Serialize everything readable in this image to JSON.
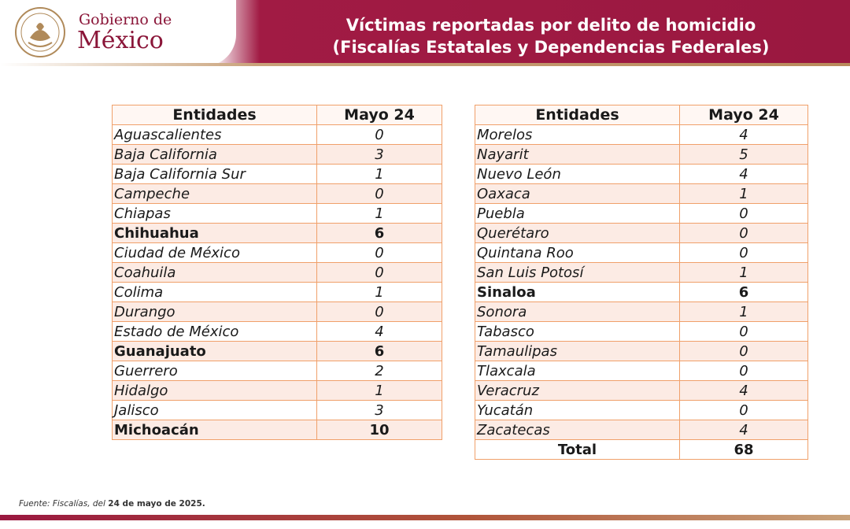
{
  "header": {
    "logo_line1": "Gobierno de",
    "logo_line2": "México",
    "title_line1": "Víctimas reportadas por delito de homicidio",
    "title_line2": "(Fiscalías Estatales y Dependencias Federales)"
  },
  "table_left": {
    "col_entity": "Entidades",
    "col_value": "Mayo 24",
    "rows": [
      {
        "name": "Aguascalientes",
        "value": "0",
        "bold": false
      },
      {
        "name": "Baja California",
        "value": "3",
        "bold": false
      },
      {
        "name": "Baja California Sur",
        "value": "1",
        "bold": false
      },
      {
        "name": "Campeche",
        "value": "0",
        "bold": false
      },
      {
        "name": "Chiapas",
        "value": "1",
        "bold": false
      },
      {
        "name": "Chihuahua",
        "value": "6",
        "bold": true
      },
      {
        "name": "Ciudad de México",
        "value": "0",
        "bold": false
      },
      {
        "name": "Coahuila",
        "value": "0",
        "bold": false
      },
      {
        "name": "Colima",
        "value": "1",
        "bold": false
      },
      {
        "name": "Durango",
        "value": "0",
        "bold": false
      },
      {
        "name": "Estado de México",
        "value": "4",
        "bold": false
      },
      {
        "name": "Guanajuato",
        "value": "6",
        "bold": true
      },
      {
        "name": "Guerrero",
        "value": "2",
        "bold": false
      },
      {
        "name": "Hidalgo",
        "value": "1",
        "bold": false
      },
      {
        "name": "Jalisco",
        "value": "3",
        "bold": false
      },
      {
        "name": "Michoacán",
        "value": "10",
        "bold": true
      }
    ]
  },
  "table_right": {
    "col_entity": "Entidades",
    "col_value": "Mayo 24",
    "rows": [
      {
        "name": "Morelos",
        "value": "4",
        "bold": false
      },
      {
        "name": "Nayarit",
        "value": "5",
        "bold": false
      },
      {
        "name": "Nuevo León",
        "value": "4",
        "bold": false
      },
      {
        "name": "Oaxaca",
        "value": "1",
        "bold": false
      },
      {
        "name": "Puebla",
        "value": "0",
        "bold": false
      },
      {
        "name": "Querétaro",
        "value": "0",
        "bold": false
      },
      {
        "name": "Quintana Roo",
        "value": "0",
        "bold": false
      },
      {
        "name": "San Luis Potosí",
        "value": "1",
        "bold": false
      },
      {
        "name": "Sinaloa",
        "value": "6",
        "bold": true
      },
      {
        "name": "Sonora",
        "value": "1",
        "bold": false
      },
      {
        "name": "Tabasco",
        "value": "0",
        "bold": false
      },
      {
        "name": "Tamaulipas",
        "value": "0",
        "bold": false
      },
      {
        "name": "Tlaxcala",
        "value": "0",
        "bold": false
      },
      {
        "name": "Veracruz",
        "value": "4",
        "bold": false
      },
      {
        "name": "Yucatán",
        "value": "0",
        "bold": false
      },
      {
        "name": "Zacatecas",
        "value": "4",
        "bold": false
      }
    ],
    "total_label": "Total",
    "total_value": "68"
  },
  "source": {
    "prefix": "Fuente: Fiscalías, del",
    "date": "24 de mayo de 2025."
  },
  "colors": {
    "brand": "#9a1840",
    "border": "#f0a06a",
    "row_alt": "#fcebe4"
  }
}
